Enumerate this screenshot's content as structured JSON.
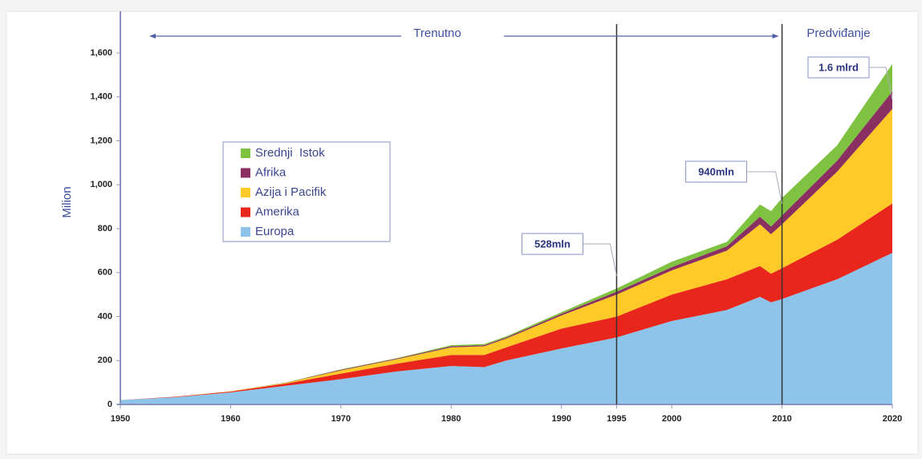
{
  "chart_data": {
    "type": "stacked-area",
    "y_label": "Milion",
    "x": [
      1950,
      1955,
      1960,
      1965,
      1970,
      1975,
      1980,
      1983,
      1985,
      1990,
      1995,
      2000,
      2005,
      2008,
      2009,
      2010,
      2015,
      2020
    ],
    "series": [
      {
        "name": "Europa",
        "color": "#8ec3ea",
        "values": [
          20,
          33,
          55,
          85,
          115,
          150,
          175,
          170,
          200,
          255,
          305,
          380,
          430,
          490,
          465,
          480,
          570,
          690
        ]
      },
      {
        "name": "Amerika",
        "color": "#e8261c",
        "values": [
          0,
          2,
          4,
          10,
          25,
          35,
          50,
          55,
          60,
          90,
          95,
          120,
          140,
          140,
          130,
          140,
          180,
          225
        ]
      },
      {
        "name": "Azija i Pacifik",
        "color": "#ffc928",
        "values": [
          0,
          0,
          1,
          3,
          15,
          20,
          35,
          40,
          40,
          60,
          100,
          110,
          130,
          190,
          180,
          200,
          310,
          430
        ]
      },
      {
        "name": "Afrika",
        "color": "#8b2f62",
        "values": [
          0,
          0,
          0,
          1,
          3,
          3,
          5,
          5,
          5,
          8,
          13,
          15,
          20,
          35,
          35,
          40,
          50,
          80
        ]
      },
      {
        "name": "Srednji  Istok",
        "color": "#7fc241",
        "values": [
          0,
          0,
          0,
          1,
          2,
          2,
          5,
          5,
          5,
          7,
          15,
          25,
          20,
          55,
          70,
          80,
          70,
          125
        ]
      }
    ],
    "xlim": [
      1950,
      2020
    ],
    "ylim": [
      0,
      1600
    ],
    "xticks": [
      1950,
      1960,
      1970,
      1980,
      1990,
      1995,
      2000,
      2010,
      2020
    ],
    "yticks": [
      0,
      200,
      400,
      600,
      800,
      {
        "value": 1000,
        "label": "1,000"
      },
      {
        "value": 1200,
        "label": "1,200"
      },
      {
        "value": 1400,
        "label": "1,400"
      },
      {
        "value": 1600,
        "label": "1,600"
      }
    ],
    "vlines": [
      1995,
      2010
    ],
    "periods": [
      "Trenutno",
      "Predviđanje"
    ],
    "annotations": [
      {
        "text": "528mln",
        "x": 1995
      },
      {
        "text": "940mln",
        "x": 2010
      },
      {
        "text": "1.6 mlrd",
        "x": 2020
      }
    ]
  }
}
